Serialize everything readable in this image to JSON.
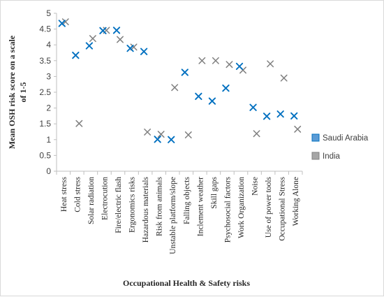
{
  "chart_data": {
    "type": "scatter",
    "title": "",
    "xlabel": "Occupational Health & Safety risks",
    "ylabel_lines": [
      "Mean OSH risk score on a scale",
      "of 1-5"
    ],
    "ylim": [
      0,
      5
    ],
    "yticks": [
      "0",
      "0.5",
      "1",
      "1.5",
      "2",
      "2.5",
      "3",
      "3.5",
      "4",
      "4.5",
      "5"
    ],
    "grid": false,
    "legend_position": "right",
    "categories": [
      "Heat stress",
      "Cold stress",
      "Solar radiation",
      "Electrocution",
      "Fire/electric flash",
      "Ergonomics risks",
      "Hazardous materials",
      "Risk from animals",
      "Unstable platform/slope",
      "Falling objects",
      "Inclement weather",
      "Skill gaps",
      "Psychosocial factors",
      "Work Organization",
      "Noise",
      "Use of power tools",
      "Occupational Stress",
      "Working Alone"
    ],
    "series": [
      {
        "name": "Saudi Arabia",
        "color": "#0070C0",
        "marker": "x",
        "values": [
          4.68,
          3.67,
          3.97,
          4.45,
          4.46,
          3.89,
          3.79,
          1.01,
          1.0,
          3.13,
          2.37,
          2.22,
          2.63,
          3.32,
          2.02,
          1.74,
          1.81,
          1.75
        ]
      },
      {
        "name": "India",
        "color": "#808080",
        "marker": "x",
        "values": [
          4.73,
          1.51,
          4.2,
          4.46,
          4.17,
          3.93,
          1.24,
          1.17,
          2.65,
          1.15,
          3.5,
          3.5,
          3.38,
          3.2,
          1.19,
          3.4,
          2.95,
          1.33
        ]
      }
    ]
  }
}
